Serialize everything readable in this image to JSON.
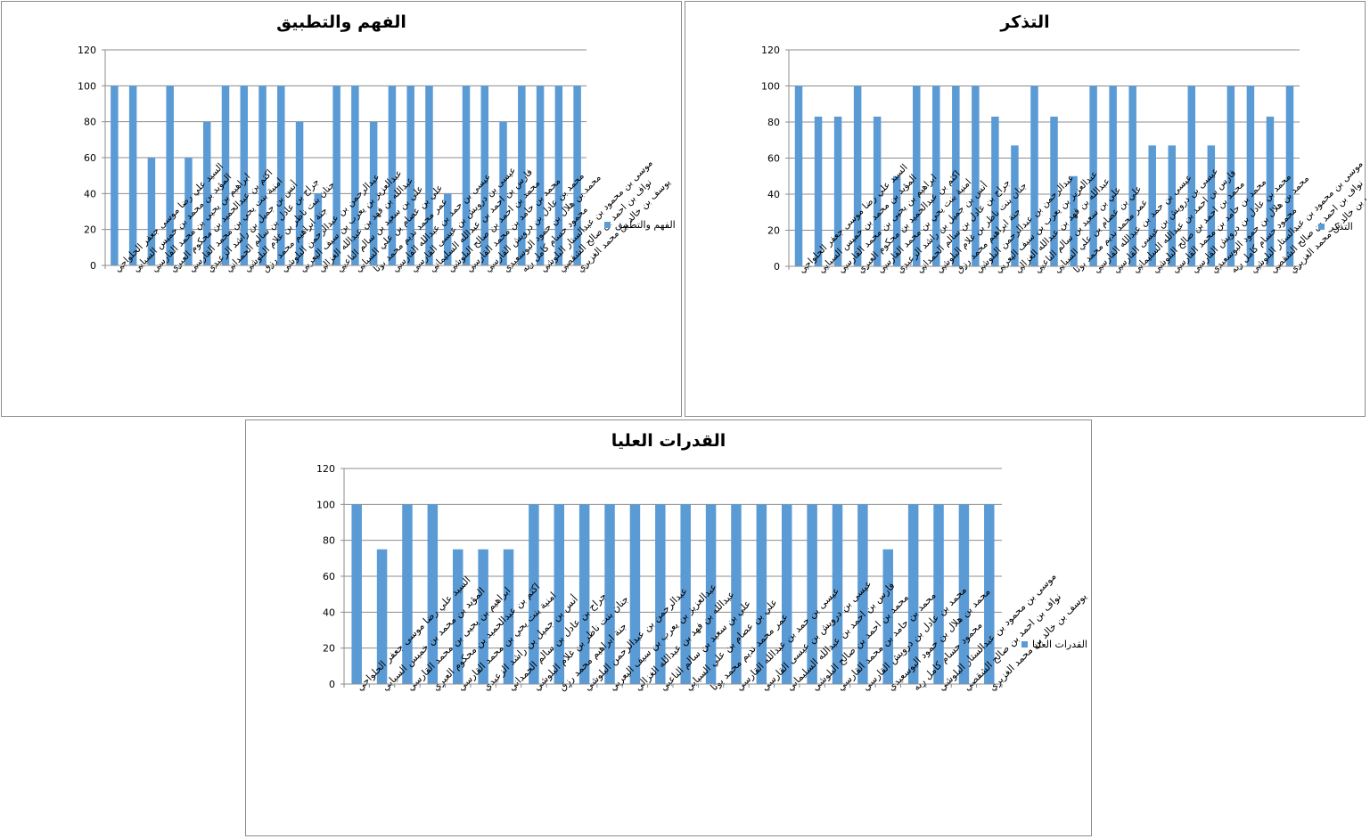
{
  "chart_data": [
    {
      "type": "bar",
      "title": "الفهم والتطبيق",
      "ylim": [
        0,
        120
      ],
      "yticks": [
        0,
        20,
        40,
        60,
        80,
        100,
        120
      ],
      "grid": true,
      "legend_position": "right",
      "color": "#5b9bd5",
      "categories": [
        "السيد علي رضا موسى جعفر الحلواجي",
        "المؤيد بن محمد بن خميس السيابي",
        "ابراهيم بن يحيى بن محمد القارسي",
        "اكثم بن عبدالحميد بن محكوم العبري",
        "امنية بنت يحي بن محمد القارسي",
        "أنس بن جميل بن راشد الزعيدي",
        "جراح بن عادل بن سالم الحمداني",
        "جنان بنت ناظر بن غلام البلوشي",
        "جنة ابراهيم محمد رزق",
        "عبدالرحمن بن عبدالرحمن البلوشي",
        "عبدالعزيز بن يعرب بن سيف اليعربي",
        "عبدالله بن فهد بن عبدالله الغزالي",
        "علي بن سعيد بن سالم الناعبي",
        "علي بن عصام بن علي السيابي",
        "عمر محمد نديم محمد بوتا",
        "عيسى بن حمد بن عبدالله القارسي",
        "عيسى بن درويش بن عيسى القارسي",
        "فارس بن احمد بن عبدالله السليماني",
        "محمد بن احمد بن صالح البلوشي",
        "محمد بن حامد بن محمد القارسي",
        "محمد بن عادل بن درويش القارسي",
        "محمد بن هلال بن حمود البوسعيدي",
        "محمود حسام كامل ربه",
        "موسى بن محمود بن عبدالستار البلوشي",
        "نواف بن احمد بن صالح الشقصي",
        "يوسف بن خالد بن محمد الغزيري"
      ],
      "series": [
        {
          "name": "الفهم والتطبيق",
          "values": [
            100,
            100,
            60,
            100,
            60,
            80,
            100,
            100,
            100,
            100,
            80,
            40,
            100,
            100,
            80,
            100,
            100,
            100,
            40,
            100,
            100,
            80,
            100,
            100,
            100,
            100
          ]
        }
      ]
    },
    {
      "type": "bar",
      "title": "التذكر",
      "ylim": [
        0,
        120
      ],
      "yticks": [
        0,
        20,
        40,
        60,
        80,
        100,
        120
      ],
      "grid": true,
      "legend_position": "right",
      "color": "#5b9bd5",
      "categories": [
        "السيد علي رضا موسى جعفر الحلواجي",
        "المؤيد بن محمد بن خميس السيابي",
        "ابراهيم بن يحيى بن محمد القارسي",
        "اكثم بن عبدالحميد بن محكوم العبري",
        "امنية بنت يحي بن محمد القارسي",
        "أنس بن جميل بن راشد الزعيدي",
        "جراح بن عادل بن سالم الحمداني",
        "جنان بنت ناظر بن غلام البلوشي",
        "جنة ابراهيم محمد رزق",
        "عبدالرحمن بن عبدالرحمن البلوشي",
        "عبدالعزيز بن يعرب بن سيف اليعربي",
        "عبدالله بن فهد بن عبدالله الغزالي",
        "علي بن سعيد بن سالم الناعبي",
        "علي بن عصام بن علي السيابي",
        "عمر محمد نديم محمد بوتا",
        "عيسى بن حمد بن عبدالله القارسي",
        "عيسى بن درويش بن عيسى القارسي",
        "فارس بن احمد بن عبدالله السليماني",
        "محمد بن احمد بن صالح البلوشي",
        "محمد بن حامد بن محمد القارسي",
        "محمد بن عادل بن درويش القارسي",
        "محمد بن هلال بن حمود البوسعيدي",
        "محمود حسام كامل ربه",
        "موسى بن محمود بن عبدالستار البلوشي",
        "نواف بن احمد بن صالح الشقصي",
        "يوسف بن خالد بن محمد الغزيري"
      ],
      "series": [
        {
          "name": "التذكر",
          "values": [
            100,
            83,
            83,
            100,
            83,
            50,
            100,
            100,
            100,
            100,
            83,
            67,
            100,
            83,
            50,
            100,
            100,
            100,
            67,
            67,
            100,
            67,
            100,
            100,
            83,
            100
          ]
        }
      ]
    },
    {
      "type": "bar",
      "title": "القدرات العليا",
      "ylim": [
        0,
        120
      ],
      "yticks": [
        0,
        20,
        40,
        60,
        80,
        100,
        120
      ],
      "grid": true,
      "legend_position": "right",
      "color": "#5b9bd5",
      "categories": [
        "السيد علي رضا موسى جعفر الحلواجي",
        "المؤيد بن محمد بن خميس السيابي",
        "ابراهيم بن يحيى بن محمد القارسي",
        "اكثم بن عبدالحميد بن محكوم العبري",
        "امنية بنت يحي بن محمد القارسي",
        "أنس بن جميل بن راشد الزعيدي",
        "جراح بن عادل بن سالم الحمداني",
        "جنان بنت ناظر بن غلام البلوشي",
        "جنة ابراهيم محمد رزق",
        "عبدالرحمن بن عبدالرحمن البلوشي",
        "عبدالعزيز بن يعرب بن سيف اليعربي",
        "عبدالله بن فهد بن عبدالله الغزالي",
        "علي بن سعيد بن سالم الناعبي",
        "علي بن عصام بن علي السيابي",
        "عمر محمد نديم محمد بوتا",
        "عيسى بن حمد بن عبدالله القارسي",
        "عيسى بن درويش بن عيسى القارسي",
        "فارس بن احمد بن عبدالله السليماني",
        "محمد بن احمد بن صالح البلوشي",
        "محمد بن حامد بن محمد القارسي",
        "محمد بن عادل بن درويش القارسي",
        "محمد بن هلال بن حمود البوسعيدي",
        "محمود حسام كامل ربه",
        "موسى بن محمود بن عبدالستار البلوشي",
        "نواف بن احمد بن صالح الشقصي",
        "يوسف بن خالد بن محمد الغزيري"
      ],
      "series": [
        {
          "name": "القدرات العليا",
          "values": [
            100,
            75,
            100,
            100,
            75,
            75,
            75,
            100,
            100,
            100,
            100,
            100,
            100,
            100,
            100,
            100,
            100,
            100,
            100,
            100,
            100,
            75,
            100,
            100,
            100,
            100
          ]
        }
      ]
    }
  ]
}
